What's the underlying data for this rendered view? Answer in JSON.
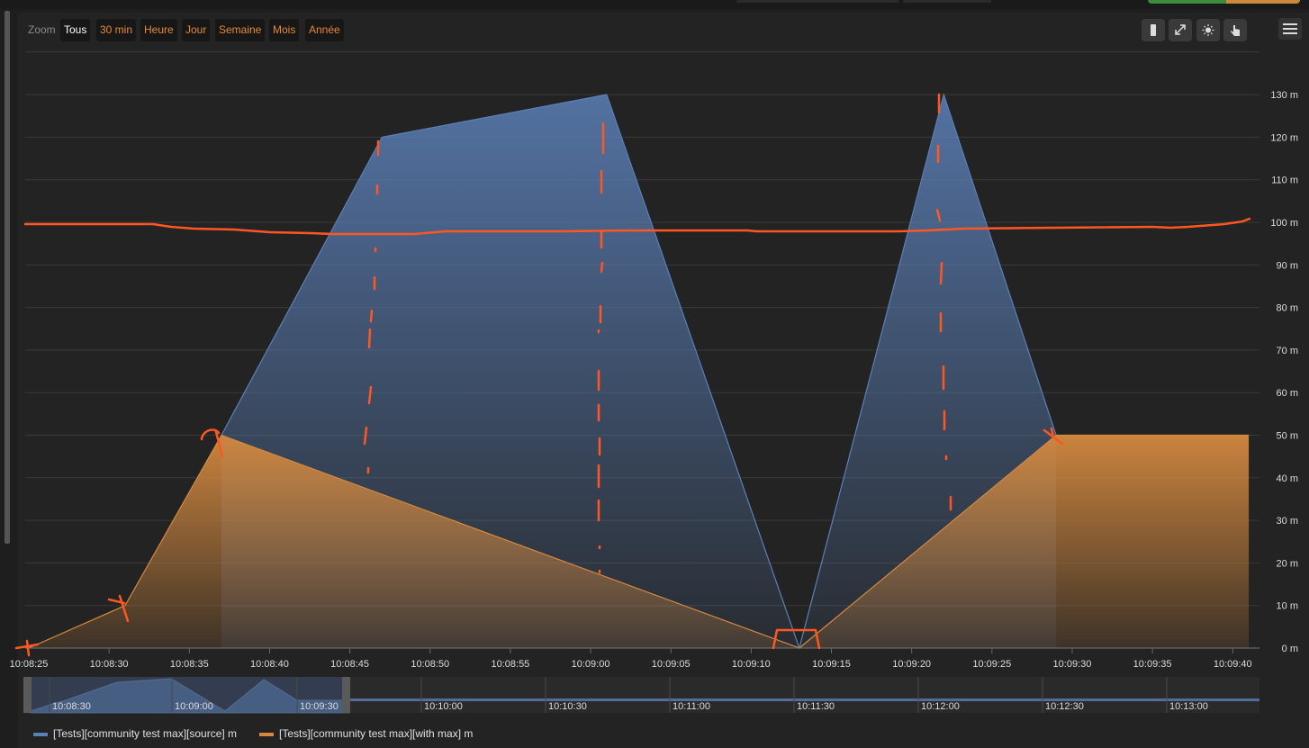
{
  "zoom": {
    "label": "Zoom",
    "buttons": [
      "Tous",
      "30 min",
      "Heure",
      "Jour",
      "Semaine",
      "Mois",
      "Année"
    ],
    "active": "Tous"
  },
  "toolbar_icons": [
    "bar-icon",
    "expand-icon",
    "settings-sun-icon",
    "hand-pointer-icon"
  ],
  "colors": {
    "source": "#5b80b8",
    "with_max": "#d4893f",
    "annotation": "#ff5722"
  },
  "chart_data": {
    "type": "area",
    "x_tick_labels": [
      "10:08:25",
      "10:08:30",
      "10:08:35",
      "10:08:40",
      "10:08:45",
      "10:08:50",
      "10:08:55",
      "10:09:00",
      "10:09:05",
      "10:09:10",
      "10:09:15",
      "10:09:20",
      "10:09:25",
      "10:09:30",
      "10:09:35",
      "10:09:40"
    ],
    "y_tick_labels": [
      "0 m",
      "10 m",
      "20 m",
      "30 m",
      "40 m",
      "50 m",
      "60 m",
      "70 m",
      "80 m",
      "90 m",
      "100 m",
      "110 m",
      "120 m",
      "130 m"
    ],
    "ylim": [
      0,
      140
    ],
    "xlim_seconds": [
      0,
      76.5
    ],
    "x_axis_start": "10:08:25",
    "series": [
      {
        "name": "[Tests][community test max][source] m",
        "color": "#5b80b8",
        "points": [
          [
            "10:08:37",
            50
          ],
          [
            "10:08:47",
            120
          ],
          [
            "10:09:01",
            130
          ],
          [
            "10:09:13",
            0
          ],
          [
            "10:09:22",
            130
          ],
          [
            "10:09:29",
            50
          ]
        ]
      },
      {
        "name": "[Tests][community test max][with max] m",
        "color": "#d4893f",
        "points": [
          [
            "10:08:25",
            0
          ],
          [
            "10:08:31",
            10
          ],
          [
            "10:08:37",
            50
          ],
          [
            "10:09:13",
            0
          ],
          [
            "10:09:29",
            50
          ],
          [
            "10:09:41",
            50
          ]
        ]
      }
    ]
  },
  "navigator": {
    "tick_labels": [
      "10:08:30",
      "10:09:00",
      "10:09:30",
      "10:10:00",
      "10:10:30",
      "10:11:00",
      "10:11:30",
      "10:12:00",
      "10:12:30",
      "10:13:00"
    ]
  },
  "legend": [
    {
      "label": "[Tests][community test max][source] m",
      "color": "#5b80b8"
    },
    {
      "label": "[Tests][community test max][with max] m",
      "color": "#d4893f"
    }
  ]
}
